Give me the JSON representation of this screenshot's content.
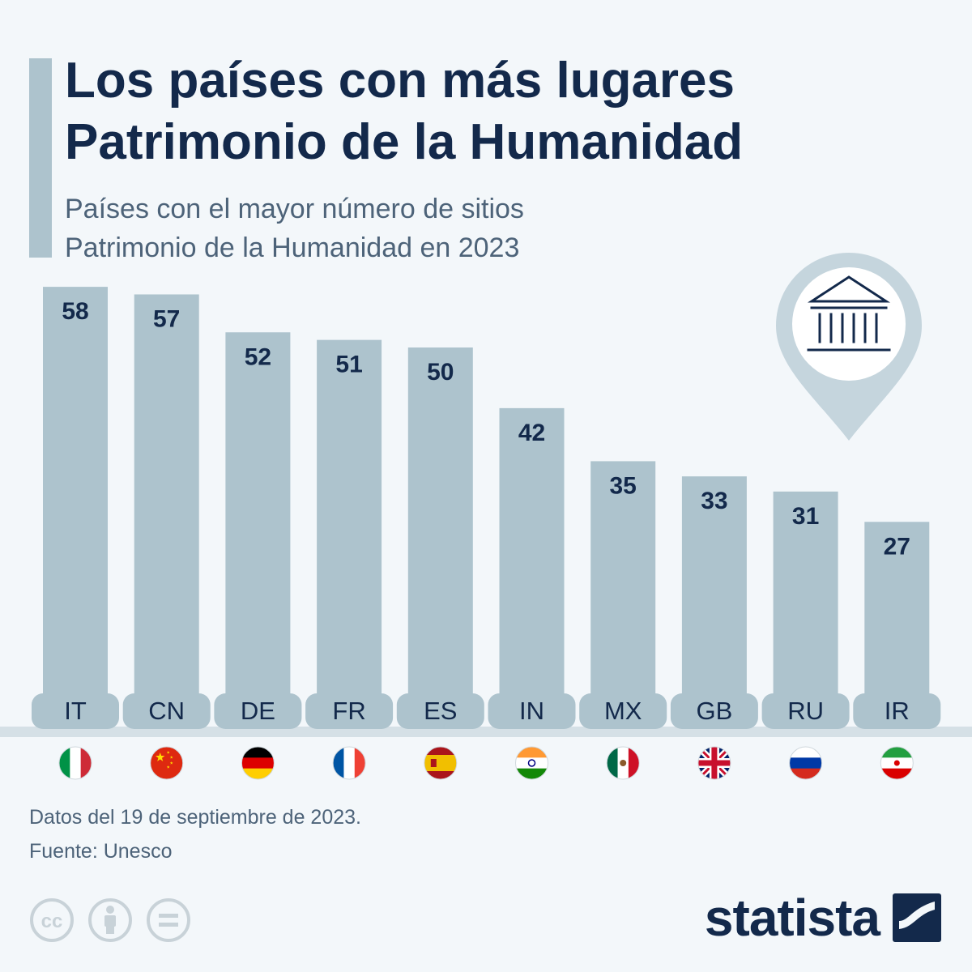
{
  "header": {
    "title_line1": "Los países con más lugares",
    "title_line2": "Patrimonio de la Humanidad",
    "subtitle_line1": "Países con el mayor número de sitios",
    "subtitle_line2": "Patrimonio de la Humanidad en 2023"
  },
  "chart_data": {
    "type": "bar",
    "categories": [
      "IT",
      "CN",
      "DE",
      "FR",
      "ES",
      "IN",
      "MX",
      "GB",
      "RU",
      "IR"
    ],
    "values": [
      58,
      57,
      52,
      51,
      50,
      42,
      35,
      33,
      31,
      27
    ],
    "title": "Los países con más lugares Patrimonio de la Humanidad",
    "subtitle": "Países con el mayor número de sitios Patrimonio de la Humanidad en 2023",
    "xlabel": "",
    "ylabel": "",
    "grid": false,
    "value_labels": "inside-top",
    "flags": [
      "italy-flag-icon",
      "china-flag-icon",
      "germany-flag-icon",
      "france-flag-icon",
      "spain-flag-icon",
      "india-flag-icon",
      "mexico-flag-icon",
      "uk-flag-icon",
      "russia-flag-icon",
      "iran-flag-icon"
    ]
  },
  "footer": {
    "note": "Datos del 19 de septiembre de 2023.",
    "source": "Fuente: Unesco",
    "brand": "statista",
    "license_icons": [
      "cc-icon",
      "attribution-icon",
      "no-derivatives-icon"
    ]
  },
  "decoration": {
    "pin_icon": "map-pin-monument-icon"
  },
  "colors": {
    "background": "#f3f7fa",
    "bar": "#adc3cd",
    "title": "#13294b",
    "subtitle": "#4d6379",
    "axis": "#d5e0e6"
  }
}
